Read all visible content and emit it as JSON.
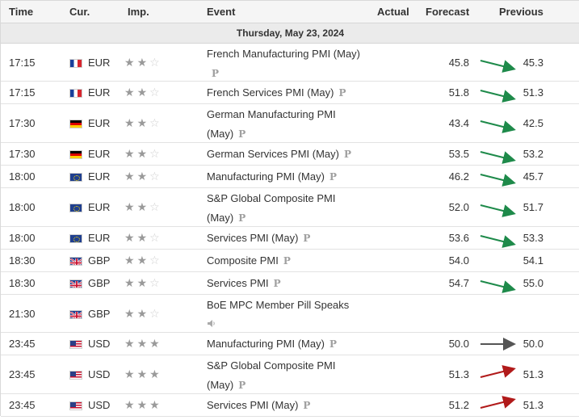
{
  "header": {
    "time": "Time",
    "currency": "Cur.",
    "importance": "Imp.",
    "event": "Event",
    "actual": "Actual",
    "forecast": "Forecast",
    "previous": "Previous"
  },
  "date_label": "Thursday, May 23, 2024",
  "rows": [
    {
      "time": "17:15",
      "flag": "fr",
      "currency": "EUR",
      "stars": 2,
      "event": "French Manufacturing PMI (May)",
      "badge": "p",
      "forecast": "45.8",
      "previous": "45.3",
      "trend": "up"
    },
    {
      "time": "17:15",
      "flag": "fr",
      "currency": "EUR",
      "stars": 2,
      "event": "French Services PMI (May)",
      "badge": "p",
      "forecast": "51.8",
      "previous": "51.3",
      "trend": "up"
    },
    {
      "time": "17:30",
      "flag": "de",
      "currency": "EUR",
      "stars": 2,
      "event": "German Manufacturing PMI (May)",
      "badge": "p",
      "forecast": "43.4",
      "previous": "42.5",
      "trend": "up"
    },
    {
      "time": "17:30",
      "flag": "de",
      "currency": "EUR",
      "stars": 2,
      "event": "German Services PMI (May)",
      "badge": "p",
      "forecast": "53.5",
      "previous": "53.2",
      "trend": "up"
    },
    {
      "time": "18:00",
      "flag": "eu",
      "currency": "EUR",
      "stars": 2,
      "event": "Manufacturing PMI (May)",
      "badge": "p",
      "forecast": "46.2",
      "previous": "45.7",
      "trend": "up"
    },
    {
      "time": "18:00",
      "flag": "eu",
      "currency": "EUR",
      "stars": 2,
      "event": "S&P Global Composite PMI (May)",
      "badge": "p",
      "forecast": "52.0",
      "previous": "51.7",
      "trend": "up"
    },
    {
      "time": "18:00",
      "flag": "eu",
      "currency": "EUR",
      "stars": 2,
      "event": "Services PMI (May)",
      "badge": "p",
      "forecast": "53.6",
      "previous": "53.3",
      "trend": "up"
    },
    {
      "time": "18:30",
      "flag": "gb",
      "currency": "GBP",
      "stars": 2,
      "event": "Composite PMI",
      "badge": "p",
      "forecast": "54.0",
      "previous": "54.1",
      "trend": "none"
    },
    {
      "time": "18:30",
      "flag": "gb",
      "currency": "GBP",
      "stars": 2,
      "event": "Services PMI",
      "badge": "p",
      "forecast": "54.7",
      "previous": "55.0",
      "trend": "up"
    },
    {
      "time": "21:30",
      "flag": "gb",
      "currency": "GBP",
      "stars": 2,
      "event": "BoE MPC Member Pill Speaks",
      "badge": "speaker",
      "forecast": "",
      "previous": "",
      "trend": "none"
    },
    {
      "time": "23:45",
      "flag": "us",
      "currency": "USD",
      "stars": 3,
      "event": "Manufacturing PMI (May)",
      "badge": "p",
      "forecast": "50.0",
      "previous": "50.0",
      "trend": "flat"
    },
    {
      "time": "23:45",
      "flag": "us",
      "currency": "USD",
      "stars": 3,
      "event": "S&P Global Composite PMI (May)",
      "badge": "p",
      "forecast": "51.3",
      "previous": "51.3",
      "trend": "down"
    },
    {
      "time": "23:45",
      "flag": "us",
      "currency": "USD",
      "stars": 3,
      "event": "Services PMI (May)",
      "badge": "p",
      "forecast": "51.2",
      "previous": "51.3",
      "trend": "down"
    }
  ],
  "colors": {
    "up": "#1e8a4a",
    "down": "#b11a1a",
    "flat": "#555555"
  },
  "badge_glyph": "P",
  "speaker_glyph": "🔈"
}
